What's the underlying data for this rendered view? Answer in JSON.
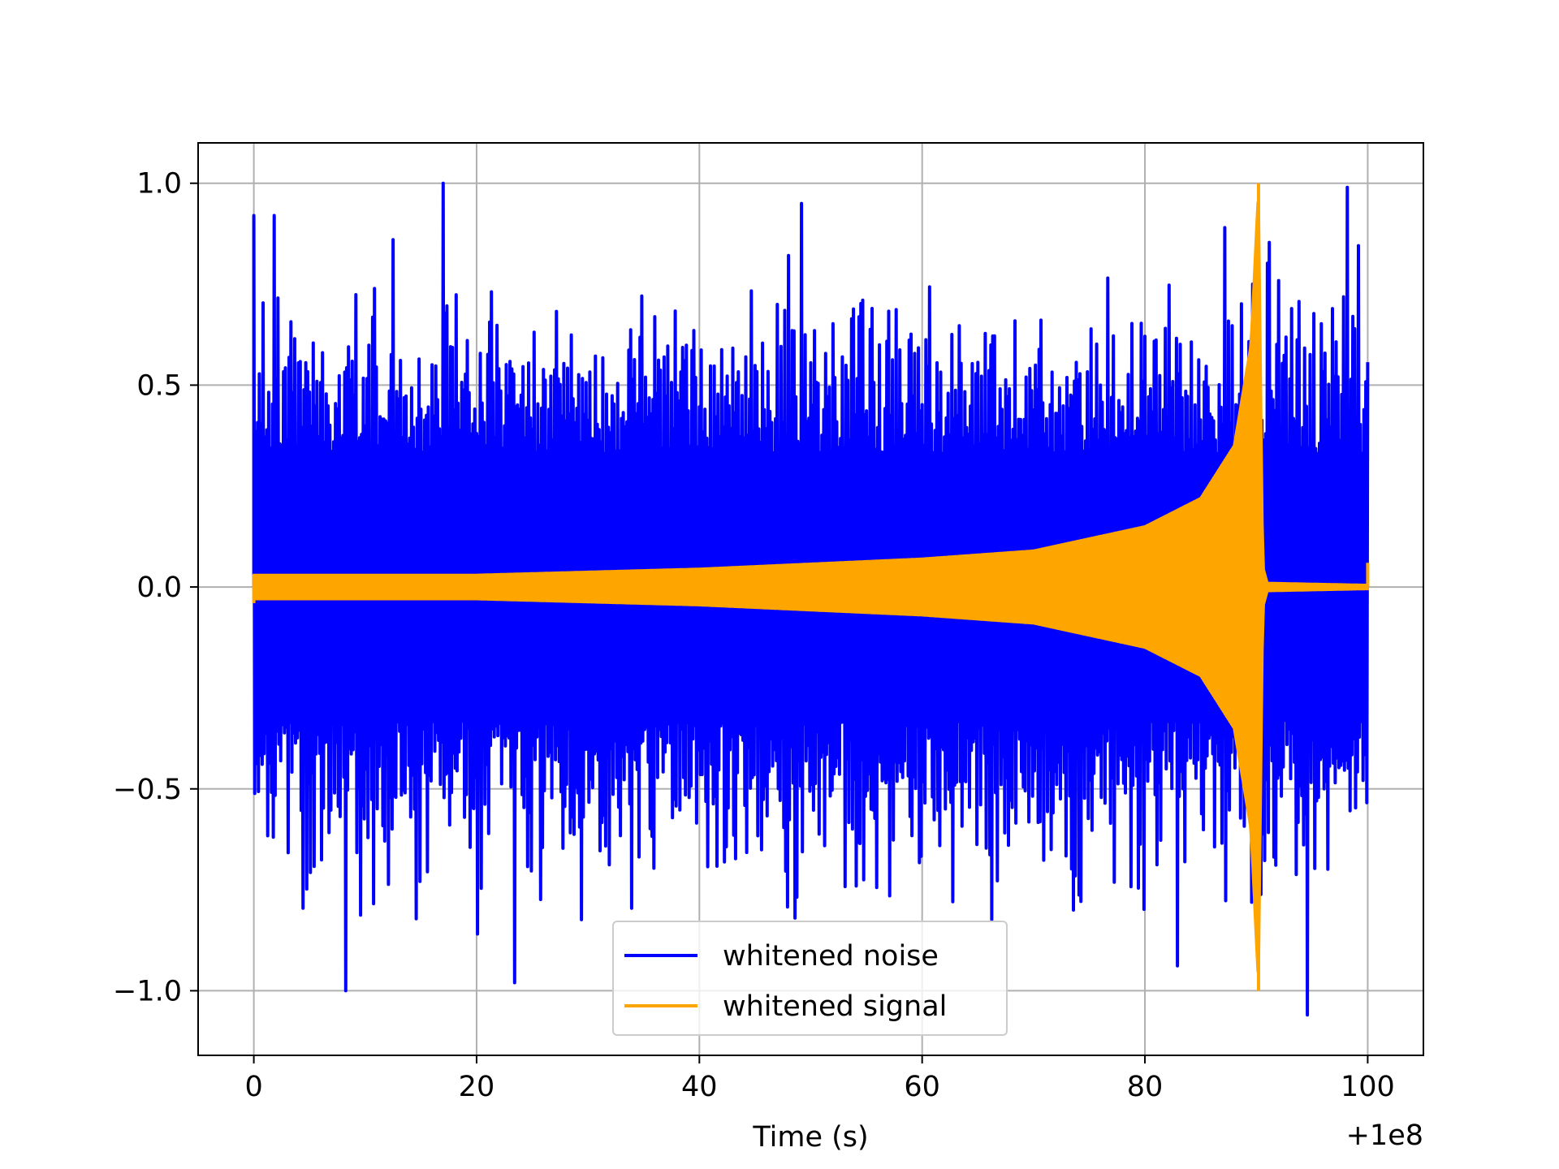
{
  "chart_data": {
    "type": "line",
    "title": "",
    "xlabel": "Time (s)",
    "ylabel": "",
    "x_offset_label": "+1e8",
    "xlim": [
      -5,
      105
    ],
    "ylim": [
      -1.16,
      1.1
    ],
    "xticks": [
      0,
      20,
      40,
      60,
      80,
      100
    ],
    "xtick_labels": [
      "0",
      "20",
      "40",
      "60",
      "80",
      "100"
    ],
    "yticks": [
      -1.0,
      -0.5,
      0.0,
      0.5,
      1.0
    ],
    "ytick_labels": [
      "−1.0",
      "−0.5",
      "0.0",
      "0.5",
      "1.0"
    ],
    "grid": true,
    "legend_position": "lower center",
    "series": [
      {
        "name": "whitened noise",
        "color": "#0000ff",
        "x_range": [
          0,
          100
        ],
        "typical_amplitude": 0.6,
        "max": 1.0,
        "min": -1.06,
        "peaks": [
          {
            "x": 0.0,
            "y": 0.92
          },
          {
            "x": 1.8,
            "y": 0.92
          },
          {
            "x": 8.2,
            "y": -1.0
          },
          {
            "x": 17.0,
            "y": 1.0
          },
          {
            "x": 23.3,
            "y": -0.98
          },
          {
            "x": 49.2,
            "y": 0.95
          },
          {
            "x": 87.1,
            "y": 0.89
          },
          {
            "x": 94.5,
            "y": -1.06
          },
          {
            "x": 98.1,
            "y": 0.99
          }
        ]
      },
      {
        "name": "whitened signal",
        "color": "#ffa500",
        "x_range": [
          0,
          100
        ],
        "envelope": [
          {
            "x": 0,
            "y": 0.03
          },
          {
            "x": 20,
            "y": 0.03
          },
          {
            "x": 40,
            "y": 0.045
          },
          {
            "x": 60,
            "y": 0.07
          },
          {
            "x": 70,
            "y": 0.09
          },
          {
            "x": 80,
            "y": 0.15
          },
          {
            "x": 85,
            "y": 0.22
          },
          {
            "x": 88,
            "y": 0.35
          },
          {
            "x": 89.5,
            "y": 0.6
          },
          {
            "x": 90.2,
            "y": 1.0
          },
          {
            "x": 90.6,
            "y": 0.05
          },
          {
            "x": 91,
            "y": 0.01
          },
          {
            "x": 100,
            "y": 0.005
          }
        ],
        "peak": {
          "x": 90.2,
          "max": 1.0,
          "min": -1.0
        },
        "end_step": {
          "x": 100,
          "y": 0.06
        }
      }
    ]
  }
}
